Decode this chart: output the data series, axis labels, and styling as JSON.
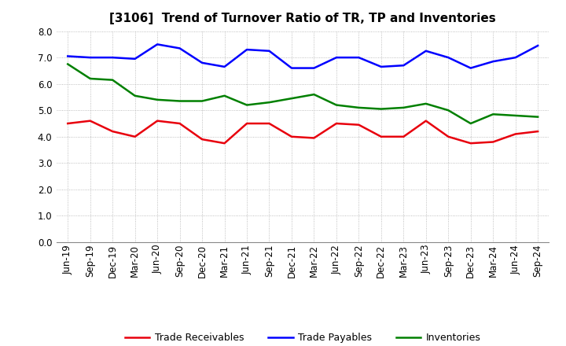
{
  "title": "[3106]  Trend of Turnover Ratio of TR, TP and Inventories",
  "x_labels": [
    "Jun-19",
    "Sep-19",
    "Dec-19",
    "Mar-20",
    "Jun-20",
    "Sep-20",
    "Dec-20",
    "Mar-21",
    "Jun-21",
    "Sep-21",
    "Dec-21",
    "Mar-22",
    "Jun-22",
    "Sep-22",
    "Dec-22",
    "Mar-23",
    "Jun-23",
    "Sep-23",
    "Dec-23",
    "Mar-24",
    "Jun-24",
    "Sep-24"
  ],
  "trade_receivables": [
    4.5,
    4.6,
    4.2,
    4.0,
    4.6,
    4.5,
    3.9,
    3.75,
    4.5,
    4.5,
    4.0,
    3.95,
    4.5,
    4.45,
    4.0,
    4.0,
    4.6,
    4.0,
    3.75,
    3.8,
    4.1,
    4.2
  ],
  "trade_payables": [
    7.05,
    7.0,
    7.0,
    6.95,
    7.5,
    7.35,
    6.8,
    6.65,
    7.3,
    7.25,
    6.6,
    6.6,
    7.0,
    7.0,
    6.65,
    6.7,
    7.25,
    7.0,
    6.6,
    6.85,
    7.0,
    7.45
  ],
  "inventories": [
    6.75,
    6.2,
    6.15,
    5.55,
    5.4,
    5.35,
    5.35,
    5.55,
    5.2,
    5.3,
    5.45,
    5.6,
    5.2,
    5.1,
    5.05,
    5.1,
    5.25,
    5.0,
    4.5,
    4.85,
    4.8,
    4.75
  ],
  "ylim": [
    0,
    8.0
  ],
  "yticks": [
    0.0,
    1.0,
    2.0,
    3.0,
    4.0,
    5.0,
    6.0,
    7.0,
    8.0
  ],
  "color_tr": "#e8000d",
  "color_tp": "#0000ff",
  "color_inv": "#008000",
  "legend_tr": "Trade Receivables",
  "legend_tp": "Trade Payables",
  "legend_inv": "Inventories",
  "background_color": "#ffffff",
  "grid_color": "#999999",
  "linewidth": 1.8,
  "title_fontsize": 11,
  "tick_fontsize": 8.5,
  "legend_fontsize": 9
}
